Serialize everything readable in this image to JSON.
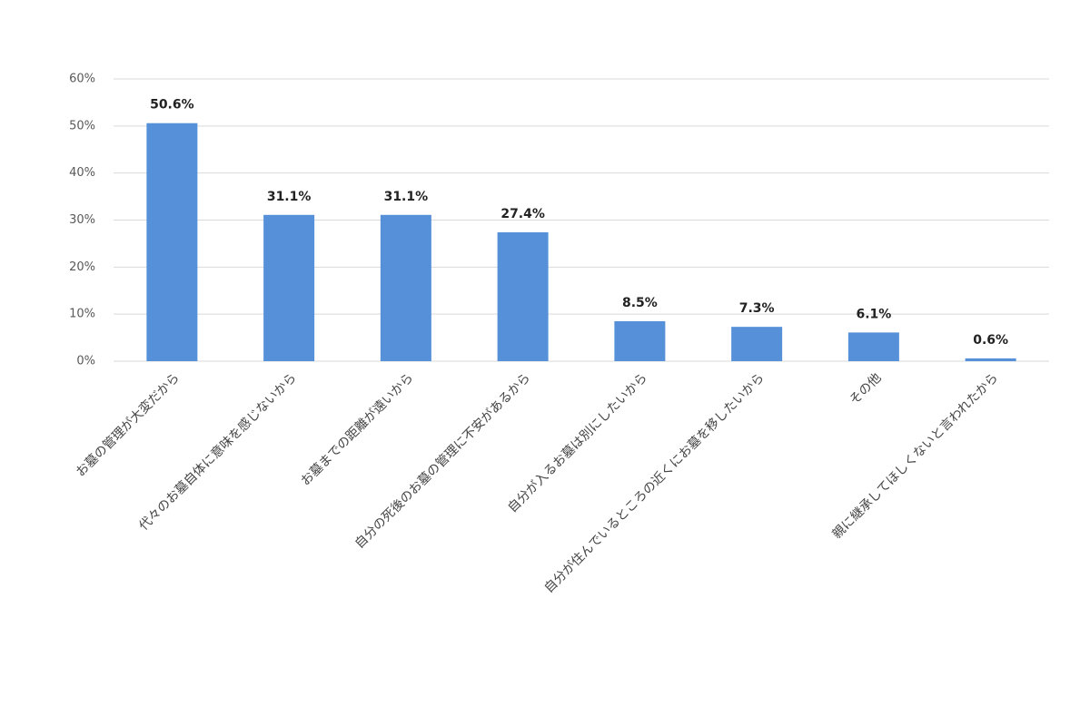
{
  "chart_data": {
    "type": "bar",
    "categories": [
      "お墓の管理が大変だから",
      "代々のお墓自体に意味を感じないから",
      "お墓までの距離が遠いから",
      "自分の死後のお墓の管理に不安があるから",
      "自分が入るお墓は別にしたいから",
      "自分が住んでいるところの近くにお墓を移したいから",
      "その他",
      "親に継承してほしくないと言われたから"
    ],
    "values": [
      50.6,
      31.1,
      31.1,
      27.4,
      8.5,
      7.3,
      6.1,
      0.6
    ],
    "value_labels": [
      "50.6%",
      "31.1%",
      "31.1%",
      "27.4%",
      "8.5%",
      "7.3%",
      "6.1%",
      "0.6%"
    ],
    "color": "#5590d9",
    "ylim": [
      0,
      60
    ],
    "yticks": [
      {
        "value": 0,
        "label": "0%"
      },
      {
        "value": 10,
        "label": "10%"
      },
      {
        "value": 20,
        "label": "20%"
      },
      {
        "value": 30,
        "label": "30%"
      },
      {
        "value": 40,
        "label": "40%"
      },
      {
        "value": 50,
        "label": "50%"
      },
      {
        "value": 60,
        "label": "60%"
      }
    ],
    "grid": true
  }
}
